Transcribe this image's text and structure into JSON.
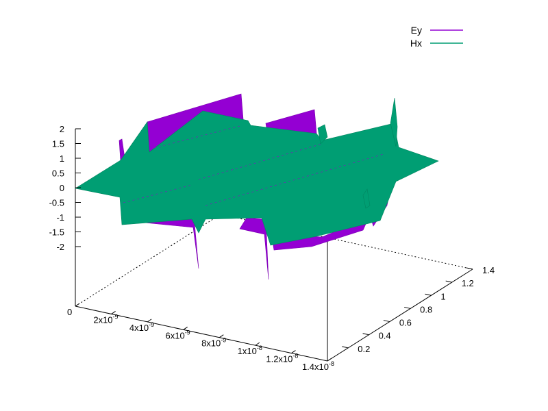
{
  "chart_data": {
    "type": "surface",
    "title": "",
    "xlabel": "",
    "ylabel": "",
    "zlabel": "",
    "legend_position": "top-right",
    "grid": false,
    "x_range": [
      0,
      1.4e-08
    ],
    "y_range": [
      0,
      1.4
    ],
    "z_range": [
      -2,
      2
    ],
    "x_ticks": [
      {
        "base": "0",
        "exp": ""
      },
      {
        "base": "2x10",
        "exp": "-9"
      },
      {
        "base": "4x10",
        "exp": "-9"
      },
      {
        "base": "6x10",
        "exp": "-9"
      },
      {
        "base": "8x10",
        "exp": "-9"
      },
      {
        "base": "1x10",
        "exp": "-8"
      },
      {
        "base": "1.2x10",
        "exp": "-8"
      },
      {
        "base": "1.4x10",
        "exp": "-8"
      }
    ],
    "y_ticks": [
      "0.2",
      "0.4",
      "0.6",
      "0.8",
      "1",
      "1.2",
      "1.4"
    ],
    "z_ticks": [
      "2",
      "1.5",
      "1",
      "0.5",
      "0",
      "-0.5",
      "-1",
      "-1.5",
      "-2"
    ],
    "series": [
      {
        "name": "Ey",
        "color": "#9400d3"
      },
      {
        "name": "Hx",
        "color": "#009e73"
      }
    ]
  }
}
